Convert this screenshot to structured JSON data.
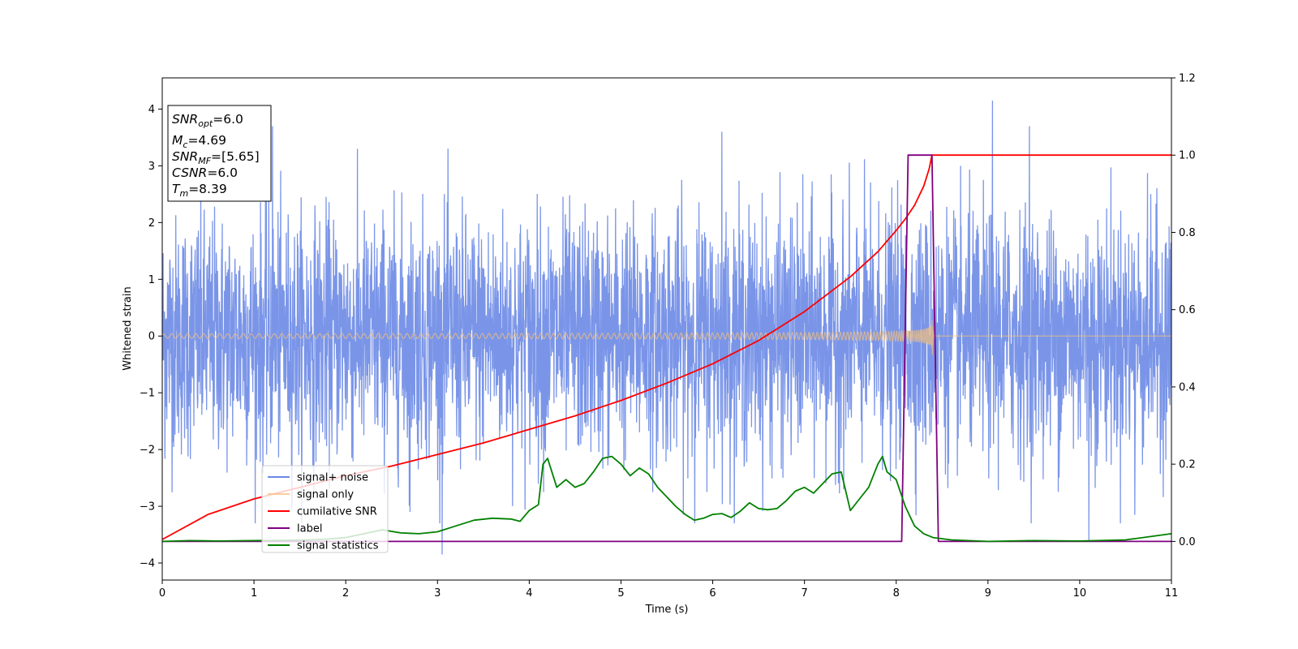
{
  "chart_data": {
    "type": "line",
    "xlabel": "Time (s)",
    "ylabel": "Whitened strain",
    "xlim": [
      0,
      11
    ],
    "ylim_left": [
      -4.3,
      4.55
    ],
    "ylim_right": [
      -0.1,
      1.2
    ],
    "x_ticks": [
      0,
      1,
      2,
      3,
      4,
      5,
      6,
      7,
      8,
      9,
      10,
      11
    ],
    "y_ticks_left": [
      -4,
      -3,
      -2,
      -1,
      0,
      1,
      2,
      3,
      4
    ],
    "y_ticks_right": [
      0.0,
      0.2,
      0.4,
      0.6,
      0.8,
      1.0,
      1.2
    ],
    "legend_position": "lower-left",
    "annotation": [
      {
        "base": "SNR",
        "sub": "opt",
        "rest": "=6.0"
      },
      {
        "base": "M",
        "sub": "c",
        "rest": "=4.69"
      },
      {
        "base": "SNR",
        "sub": "MF",
        "rest": "=[5.65]"
      },
      {
        "base": "CSNR",
        "sub": "",
        "rest": "=6.0"
      },
      {
        "base": "T",
        "sub": "m",
        "rest": "=8.39"
      }
    ],
    "series": [
      {
        "name": "signal+ noise",
        "axis": "left",
        "color": "#6b89e6",
        "style": "noise",
        "noise_std": 1.05,
        "x_range": [
          0,
          11
        ],
        "peaks": [
          [
            1.2,
            3.7
          ],
          [
            6.1,
            3.6
          ],
          [
            9.05,
            4.15
          ],
          [
            9.45,
            3.7
          ],
          [
            3.05,
            -3.85
          ],
          [
            2.7,
            -3.1
          ],
          [
            10.1,
            -3.6
          ],
          [
            10.6,
            -3.15
          ]
        ]
      },
      {
        "name": "signal only",
        "axis": "left",
        "color": "#f5c07a",
        "style": "chirp",
        "t_merge": 8.39,
        "amp_start": 0.04,
        "amp_merge": 0.55,
        "x_range": [
          0,
          11
        ]
      },
      {
        "name": "cumilative SNR",
        "axis": "right",
        "color": "#ff0000",
        "x": [
          0,
          0.5,
          1,
          1.5,
          2,
          2.5,
          3,
          3.5,
          4,
          4.5,
          5,
          5.5,
          6,
          6.5,
          7,
          7.5,
          7.8,
          8.0,
          8.1,
          8.2,
          8.3,
          8.36,
          8.39,
          11
        ],
        "values": [
          0.005,
          0.07,
          0.11,
          0.14,
          0.17,
          0.195,
          0.225,
          0.255,
          0.29,
          0.325,
          0.365,
          0.41,
          0.46,
          0.52,
          0.595,
          0.685,
          0.75,
          0.805,
          0.835,
          0.87,
          0.92,
          0.965,
          1.0,
          1.0
        ]
      },
      {
        "name": "label",
        "axis": "right",
        "color": "#800080",
        "x": [
          0,
          8.06,
          8.13,
          8.39,
          8.46,
          11
        ],
        "values": [
          0,
          0,
          1,
          1,
          0,
          0
        ]
      },
      {
        "name": "signal statistics",
        "axis": "right",
        "color": "#008000",
        "x": [
          0,
          0.3,
          0.6,
          1.0,
          1.3,
          1.6,
          1.8,
          2.0,
          2.2,
          2.4,
          2.6,
          2.8,
          3.0,
          3.2,
          3.4,
          3.6,
          3.8,
          3.9,
          4.0,
          4.1,
          4.15,
          4.2,
          4.3,
          4.4,
          4.5,
          4.6,
          4.7,
          4.8,
          4.9,
          5.0,
          5.1,
          5.2,
          5.3,
          5.4,
          5.5,
          5.6,
          5.7,
          5.8,
          5.9,
          6.0,
          6.1,
          6.2,
          6.3,
          6.4,
          6.5,
          6.6,
          6.7,
          6.8,
          6.9,
          7.0,
          7.1,
          7.2,
          7.3,
          7.4,
          7.5,
          7.6,
          7.7,
          7.8,
          7.85,
          7.9,
          8.0,
          8.1,
          8.2,
          8.3,
          8.4,
          8.6,
          9.0,
          9.5,
          10.0,
          10.5,
          11.0
        ],
        "values": [
          0.0,
          0.002,
          0.001,
          0.002,
          0.003,
          0.004,
          0.006,
          0.01,
          0.02,
          0.03,
          0.022,
          0.02,
          0.025,
          0.04,
          0.055,
          0.06,
          0.058,
          0.052,
          0.08,
          0.095,
          0.2,
          0.215,
          0.14,
          0.16,
          0.14,
          0.15,
          0.18,
          0.215,
          0.22,
          0.2,
          0.17,
          0.19,
          0.175,
          0.14,
          0.115,
          0.09,
          0.07,
          0.055,
          0.06,
          0.07,
          0.072,
          0.062,
          0.078,
          0.1,
          0.085,
          0.082,
          0.085,
          0.105,
          0.13,
          0.14,
          0.125,
          0.15,
          0.175,
          0.18,
          0.08,
          0.11,
          0.14,
          0.2,
          0.22,
          0.18,
          0.16,
          0.09,
          0.04,
          0.02,
          0.01,
          0.004,
          0.0,
          0.002,
          0.001,
          0.004,
          0.02
        ]
      }
    ]
  }
}
